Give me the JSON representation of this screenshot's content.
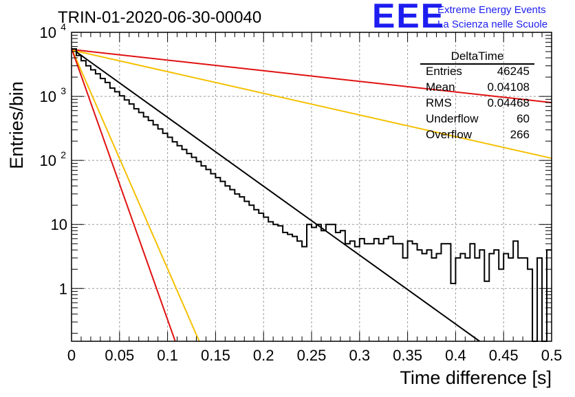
{
  "header": {
    "title": "TRIN-01-2020-06-30-00040",
    "logo_text": "EEE",
    "logo_line1": "Extreme Energy Events",
    "logo_line2": "La Scienza nelle Scuole"
  },
  "stats": {
    "name": "DeltaTime",
    "rows": [
      {
        "label": "Entries",
        "value": "46245"
      },
      {
        "label": "Mean",
        "value": "0.04108"
      },
      {
        "label": "RMS",
        "value": "0.04468"
      },
      {
        "label": "Underflow",
        "value": "60"
      },
      {
        "label": "Overflow",
        "value": "266"
      }
    ]
  },
  "chart_data": {
    "type": "line",
    "title": "TRIN-01-2020-06-30-00040",
    "xlabel": "Time difference [s]",
    "ylabel": "Entries/bin",
    "xlim": [
      0,
      0.5
    ],
    "ylim": [
      0.15,
      10000
    ],
    "yscale": "log",
    "grid": true,
    "x_ticks": [
      "0",
      "0.05",
      "0.1",
      "0.15",
      "0.2",
      "0.25",
      "0.3",
      "0.35",
      "0.4",
      "0.45",
      "0.5"
    ],
    "y_ticks": [
      {
        "value": 1,
        "label": "1"
      },
      {
        "value": 10,
        "label": "10"
      },
      {
        "value": 100,
        "label": "10",
        "exp": "2"
      },
      {
        "value": 1000,
        "label": "10",
        "exp": "3"
      },
      {
        "value": 10000,
        "label": "10",
        "exp": "4"
      }
    ],
    "histogram": {
      "name": "DeltaTime",
      "bin_width": 0.005,
      "values": [
        5500,
        4350,
        3600,
        3000,
        2600,
        2250,
        1900,
        1650,
        1350,
        1180,
        1020,
        880,
        760,
        640,
        560,
        480,
        420,
        360,
        310,
        265,
        230,
        195,
        170,
        148,
        128,
        112,
        96,
        82,
        72,
        62,
        54,
        47,
        40,
        35,
        30,
        27,
        23,
        20,
        17,
        15,
        13,
        11,
        10,
        9.5,
        7.5,
        7,
        6.5,
        5.5,
        4.5,
        10,
        9,
        10,
        8,
        10,
        10,
        7.5,
        8,
        5,
        5.5,
        4.5,
        6,
        5,
        5,
        6,
        5,
        6,
        6.5,
        5,
        5,
        3,
        5.5,
        5,
        4,
        3.5,
        4,
        3,
        3.5,
        5,
        5,
        1.2,
        3,
        3.5,
        3,
        5,
        3,
        4,
        1.3,
        3.5,
        4,
        2,
        3.5,
        3,
        5.5,
        3,
        3,
        2,
        0.05,
        3,
        0.05,
        4
      ],
      "color": "#000000"
    },
    "fits": [
      {
        "x": [
          0,
          0.425
        ],
        "y": [
          5600,
          0.15
        ],
        "color": "#000000"
      },
      {
        "x": [
          0,
          0.5
        ],
        "y": [
          5400,
          800
        ],
        "color": "#e01010"
      },
      {
        "x": [
          0,
          0.5
        ],
        "y": [
          5300,
          108
        ],
        "color": "#f5c000"
      },
      {
        "x": [
          0,
          0.133
        ],
        "y": [
          5600,
          0.15
        ],
        "color": "#f5c000"
      },
      {
        "x": [
          0,
          0.108
        ],
        "y": [
          5600,
          0.15
        ],
        "color": "#e01010"
      }
    ]
  }
}
